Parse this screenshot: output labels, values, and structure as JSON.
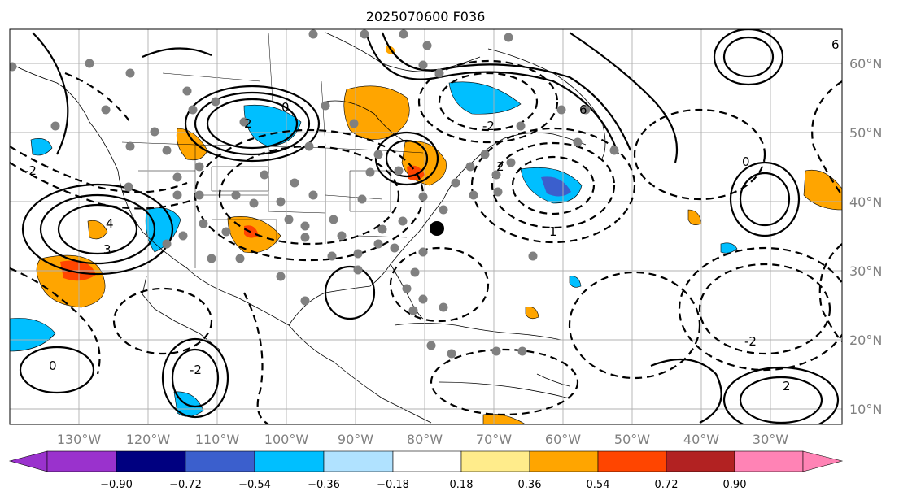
{
  "title": "2025070600 F036",
  "map": {
    "lon_labels": [
      "130°W",
      "120°W",
      "110°W",
      "100°W",
      "90°W",
      "80°W",
      "70°W",
      "60°W",
      "50°W",
      "40°W",
      "30°W"
    ],
    "lat_labels": [
      "60°N",
      "50°N",
      "40°N",
      "30°N",
      "20°N",
      "10°N"
    ],
    "contour_labels": [
      "0",
      "2",
      "4",
      "6",
      "-2",
      "3",
      "1",
      "2"
    ],
    "marker_label": "",
    "colors": {
      "grid": "#b0b0b0",
      "coast": "#000000",
      "station": "#808080",
      "marker": "#000000"
    }
  },
  "colorbar": {
    "ticks": [
      "−0.90",
      "−0.72",
      "−0.54",
      "−0.36",
      "−0.18",
      "0.18",
      "0.36",
      "0.54",
      "0.72",
      "0.90"
    ],
    "colors": [
      "#9a32cd",
      "#000080",
      "#3b5fcd",
      "#00bfff",
      "#b0e2ff",
      "#ffffff",
      "#ffec8b",
      "#ffa500",
      "#ff4500",
      "#b22222",
      "#ff83b5"
    ]
  }
}
